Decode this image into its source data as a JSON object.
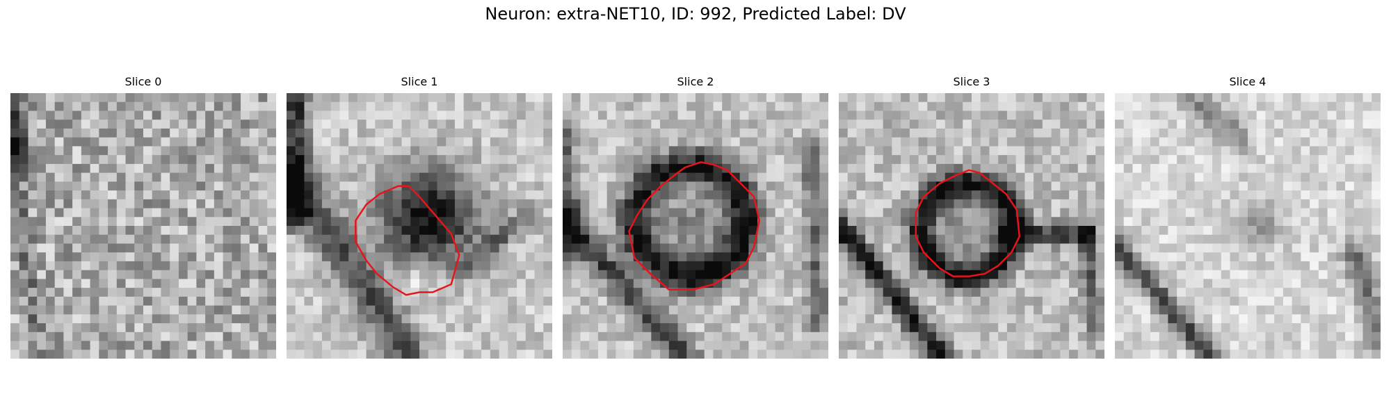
{
  "figure": {
    "title": "Neuron: extra-NET10, ID: 992, Predicted Label: DV"
  },
  "contour_color": "#e8141c",
  "panels": [
    {
      "title": "Slice 0",
      "has_contour": false
    },
    {
      "title": "Slice 1",
      "has_contour": true
    },
    {
      "title": "Slice 2",
      "has_contour": true
    },
    {
      "title": "Slice 3",
      "has_contour": true
    },
    {
      "title": "Slice 4",
      "has_contour": false
    }
  ]
}
